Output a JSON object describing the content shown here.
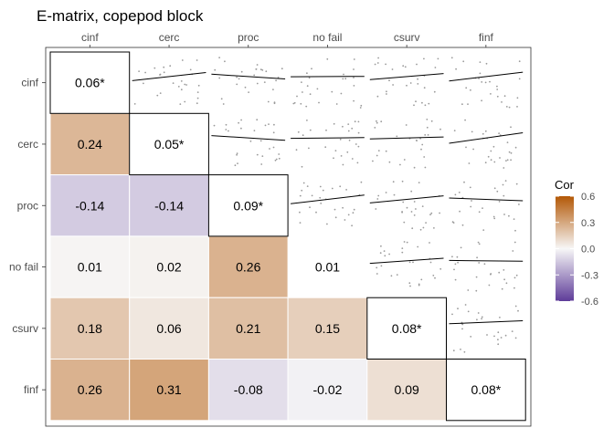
{
  "chart_data": {
    "type": "heatmap",
    "title": "E-matrix, copepod block",
    "variables": [
      "cinf",
      "cerc",
      "proc",
      "no fail",
      "csurv",
      "finf"
    ],
    "diagonal_labels": [
      "0.06*",
      "0.05*",
      "0.09*",
      "0.01",
      "0.08*",
      "0.08*"
    ],
    "diagonal_boxed": [
      true,
      true,
      true,
      false,
      true,
      true
    ],
    "lower_triangle": [
      {
        "row": "cerc",
        "col": "cinf",
        "value": 0.24,
        "label": "0.24"
      },
      {
        "row": "proc",
        "col": "cinf",
        "value": -0.14,
        "label": "-0.14"
      },
      {
        "row": "proc",
        "col": "cerc",
        "value": -0.14,
        "label": "-0.14"
      },
      {
        "row": "no fail",
        "col": "cinf",
        "value": 0.01,
        "label": "0.01"
      },
      {
        "row": "no fail",
        "col": "cerc",
        "value": 0.02,
        "label": "0.02"
      },
      {
        "row": "no fail",
        "col": "proc",
        "value": 0.26,
        "label": "0.26"
      },
      {
        "row": "csurv",
        "col": "cinf",
        "value": 0.18,
        "label": "0.18"
      },
      {
        "row": "csurv",
        "col": "cerc",
        "value": 0.06,
        "label": "0.06"
      },
      {
        "row": "csurv",
        "col": "proc",
        "value": 0.21,
        "label": "0.21"
      },
      {
        "row": "csurv",
        "col": "no fail",
        "value": 0.15,
        "label": "0.15"
      },
      {
        "row": "finf",
        "col": "cinf",
        "value": 0.26,
        "label": "0.26"
      },
      {
        "row": "finf",
        "col": "cerc",
        "value": 0.31,
        "label": "0.31"
      },
      {
        "row": "finf",
        "col": "proc",
        "value": -0.08,
        "label": "-0.08"
      },
      {
        "row": "finf",
        "col": "no fail",
        "value": -0.02,
        "label": "-0.02"
      },
      {
        "row": "finf",
        "col": "csurv",
        "value": 0.09,
        "label": "0.09"
      }
    ],
    "upper_triangle": "scatter plots with fitted regression lines",
    "legend": {
      "title": "Cor",
      "ticks": [
        "0.6",
        "0.3",
        "0.0",
        "-0.3",
        "-0.6"
      ],
      "range": [
        -0.6,
        0.6
      ],
      "colors": {
        "low": "#5e3c99",
        "mid": "#f7f7f7",
        "high": "#b35806"
      },
      "placement": "right"
    }
  }
}
